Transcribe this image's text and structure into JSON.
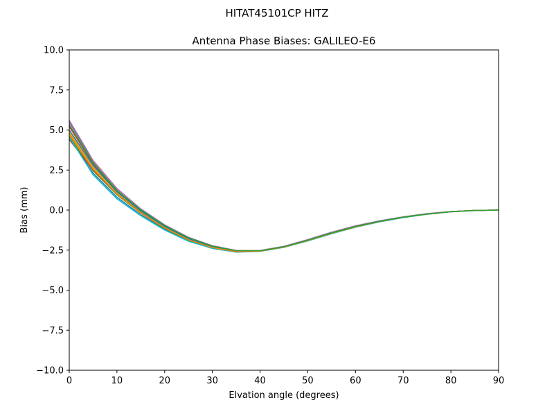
{
  "suptitle": "HITAT45101CP    HITZ",
  "chart_data": {
    "type": "line",
    "title": "Antenna Phase Biases: GALILEO-E6",
    "xlabel": "Elvation angle (degrees)",
    "ylabel": "Bias (mm)",
    "xlim": [
      0,
      90
    ],
    "ylim": [
      -10,
      10
    ],
    "xticks": [
      0,
      10,
      20,
      30,
      40,
      50,
      60,
      70,
      80,
      90
    ],
    "xtick_labels": [
      "0",
      "10",
      "20",
      "30",
      "40",
      "50",
      "60",
      "70",
      "80",
      "90"
    ],
    "yticks": [
      10,
      7.5,
      5,
      2.5,
      0,
      -2.5,
      -5,
      -7.5,
      -10
    ],
    "ytick_labels": [
      "10.0",
      "7.5",
      "5.0",
      "2.5",
      "0.0",
      "−2.5",
      "−5.0",
      "−7.5",
      "−10.0"
    ],
    "grid": false,
    "x": [
      0,
      5,
      10,
      15,
      20,
      25,
      30,
      35,
      40,
      45,
      50,
      55,
      60,
      65,
      70,
      75,
      80,
      85,
      90
    ],
    "series": [
      {
        "color": "#1f77b4",
        "values": [
          4.5,
          2.3,
          0.8,
          -0.3,
          -1.2,
          -1.9,
          -2.35,
          -2.6,
          -2.55,
          -2.3,
          -1.9,
          -1.45,
          -1.05,
          -0.72,
          -0.45,
          -0.25,
          -0.1,
          -0.02,
          0.0
        ]
      },
      {
        "color": "#ff7f0e",
        "values": [
          4.8,
          2.6,
          1.05,
          -0.1,
          -1.05,
          -1.8,
          -2.3,
          -2.55,
          -2.55,
          -2.3,
          -1.88,
          -1.42,
          -1.02,
          -0.7,
          -0.44,
          -0.24,
          -0.1,
          -0.02,
          0.0
        ]
      },
      {
        "color": "#2ca02c",
        "values": [
          4.6,
          2.45,
          0.95,
          -0.2,
          -1.15,
          -1.88,
          -2.36,
          -2.62,
          -2.57,
          -2.32,
          -1.92,
          -1.47,
          -1.06,
          -0.73,
          -0.46,
          -0.26,
          -0.11,
          -0.03,
          0.0
        ]
      },
      {
        "color": "#d62728",
        "values": [
          5.2,
          2.9,
          1.2,
          0.0,
          -0.98,
          -1.74,
          -2.26,
          -2.53,
          -2.53,
          -2.28,
          -1.86,
          -1.41,
          -1.01,
          -0.69,
          -0.43,
          -0.23,
          -0.09,
          -0.02,
          0.0
        ]
      },
      {
        "color": "#9467bd",
        "values": [
          5.6,
          3.1,
          1.35,
          0.08,
          -0.92,
          -1.7,
          -2.22,
          -2.52,
          -2.52,
          -2.26,
          -1.84,
          -1.38,
          -0.98,
          -0.67,
          -0.42,
          -0.22,
          -0.09,
          -0.02,
          0.0
        ]
      },
      {
        "color": "#8c564b",
        "values": [
          4.4,
          2.5,
          1.0,
          -0.15,
          -1.1,
          -1.85,
          -2.33,
          -2.59,
          -2.56,
          -2.31,
          -1.9,
          -1.45,
          -1.04,
          -0.71,
          -0.45,
          -0.25,
          -0.1,
          -0.02,
          0.0
        ]
      },
      {
        "color": "#e377c2",
        "values": [
          5.4,
          3.05,
          1.3,
          0.05,
          -0.95,
          -1.72,
          -2.24,
          -2.52,
          -2.52,
          -2.27,
          -1.85,
          -1.39,
          -0.99,
          -0.68,
          -0.42,
          -0.22,
          -0.09,
          -0.02,
          0.0
        ]
      },
      {
        "color": "#7f7f7f",
        "values": [
          5.5,
          3.0,
          1.25,
          0.02,
          -0.97,
          -1.73,
          -2.25,
          -2.53,
          -2.53,
          -2.28,
          -1.86,
          -1.4,
          -1.0,
          -0.69,
          -0.43,
          -0.23,
          -0.09,
          -0.02,
          0.0
        ]
      },
      {
        "color": "#bcbd22",
        "values": [
          4.9,
          2.7,
          1.1,
          -0.08,
          -1.05,
          -1.8,
          -2.3,
          -2.57,
          -2.55,
          -2.3,
          -1.89,
          -1.44,
          -1.03,
          -0.71,
          -0.44,
          -0.24,
          -0.1,
          -0.02,
          0.0
        ]
      },
      {
        "color": "#17becf",
        "values": [
          4.55,
          2.2,
          0.7,
          -0.35,
          -1.25,
          -1.95,
          -2.4,
          -2.63,
          -2.58,
          -2.33,
          -1.93,
          -1.48,
          -1.07,
          -0.74,
          -0.47,
          -0.26,
          -0.11,
          -0.03,
          0.0
        ]
      },
      {
        "color": "#1f77b4",
        "values": [
          5.0,
          2.8,
          1.15,
          -0.05,
          -1.02,
          -1.78,
          -2.28,
          -2.56,
          -2.55,
          -2.29,
          -1.88,
          -1.43,
          -1.03,
          -0.7,
          -0.44,
          -0.24,
          -0.1,
          -0.02,
          0.0
        ]
      },
      {
        "color": "#ff7f0e",
        "values": [
          4.7,
          2.55,
          1.0,
          -0.18,
          -1.12,
          -1.86,
          -2.34,
          -2.6,
          -2.56,
          -2.31,
          -1.9,
          -1.45,
          -1.05,
          -0.72,
          -0.45,
          -0.25,
          -0.1,
          -0.02,
          0.0
        ]
      },
      {
        "color": "#2ca02c",
        "values": [
          5.3,
          2.95,
          1.22,
          0.02,
          -0.96,
          -1.73,
          -2.25,
          -2.54,
          -2.54,
          -2.29,
          -1.88,
          -1.43,
          -1.03,
          -0.71,
          -0.45,
          -0.25,
          -0.1,
          -0.02,
          0.0
        ]
      }
    ]
  }
}
